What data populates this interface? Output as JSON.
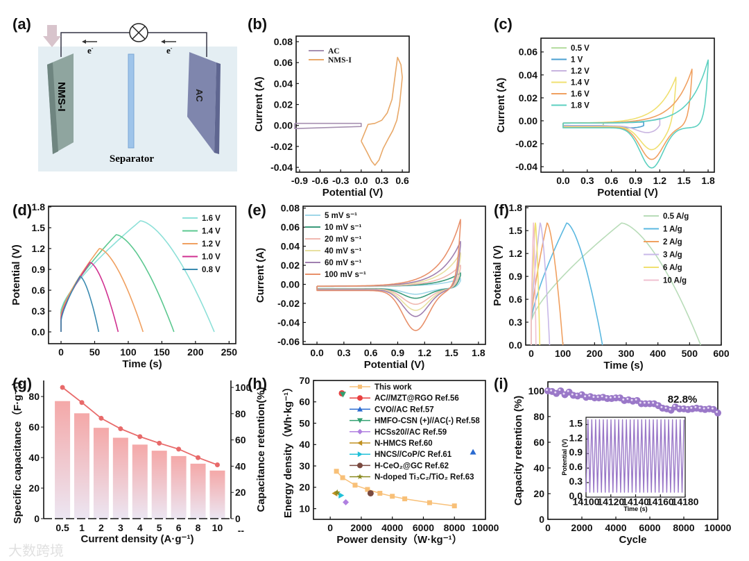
{
  "schematic": {
    "panel_label": "(a)",
    "left_electrode": "NMS-I",
    "right_electrode": "AC",
    "separator": "Separator",
    "electron_label": "e",
    "electron_sup": "-",
    "colors": {
      "electrolyte": "#e4eef3",
      "left": "#8fa59f",
      "right": "#7f86ad",
      "separator": "#9ec4ea"
    }
  },
  "watermark": "大数跨境",
  "chart_data": [
    {
      "id": "b",
      "panel_label": "(b)",
      "type": "line",
      "xlabel": "Potential (V)",
      "ylabel": "Current (A)",
      "xticks": [
        "-0.9",
        "-0.6",
        "-0.3",
        "0.0",
        "0.3",
        "0.6"
      ],
      "yticks": [
        "-0.04",
        "-0.02",
        "0.00",
        "0.02",
        "0.04",
        "0.06",
        "0.08"
      ],
      "xlim": [
        -0.95,
        0.7
      ],
      "ylim": [
        -0.0446,
        0.0853
      ],
      "legend_serif": true,
      "series": [
        {
          "name": "AC",
          "color": "#a58fb0",
          "points": [
            [
              -0.97,
              0.002
            ],
            [
              0,
              0.002
            ],
            [
              0,
              -0.001
            ],
            [
              -0.97,
              -0.003
            ],
            [
              -0.97,
              0.002
            ]
          ]
        },
        {
          "name": "NMS-I",
          "color": "#e8a868",
          "points": [
            [
              0,
              -0.015
            ],
            [
              0.08,
              -0.025
            ],
            [
              0.15,
              -0.034
            ],
            [
              0.2,
              -0.038
            ],
            [
              0.26,
              -0.033
            ],
            [
              0.32,
              -0.022
            ],
            [
              0.4,
              -0.012
            ],
            [
              0.46,
              -0.005
            ],
            [
              0.52,
              0.005
            ],
            [
              0.56,
              0.02
            ],
            [
              0.6,
              0.046
            ],
            [
              0.58,
              0.058
            ],
            [
              0.53,
              0.065
            ],
            [
              0.5,
              0.05
            ],
            [
              0.45,
              0.025
            ],
            [
              0.38,
              0.012
            ],
            [
              0.3,
              0.005
            ],
            [
              0.2,
              0.002
            ],
            [
              0.1,
              0.001
            ],
            [
              0,
              -0.015
            ]
          ]
        }
      ]
    },
    {
      "id": "c",
      "panel_label": "(c)",
      "type": "line",
      "xlabel": "Potential (V)",
      "ylabel": "Current (A)",
      "xticks": [
        "0.0",
        "0.3",
        "0.6",
        "0.9",
        "1.2",
        "1.5",
        "1.8"
      ],
      "yticks": [
        "-0.04",
        "-0.02",
        "0.00",
        "0.02",
        "0.04",
        "0.06"
      ],
      "xlim": [
        -0.275,
        1.877
      ],
      "ylim": [
        -0.0448,
        0.072
      ],
      "series": [
        {
          "name": "0.5 V",
          "color": "#b5dca0",
          "upper_voltage": 0.5,
          "anodic_peak": 0.0005,
          "cathodic_peak": 0.0005
        },
        {
          "name": "1 V",
          "color": "#4a9fd0",
          "upper_voltage": 1.0,
          "anodic_peak": 0.001,
          "cathodic_peak": 0.002
        },
        {
          "name": "1.2 V",
          "color": "#c8b4e0",
          "upper_voltage": 1.2,
          "anodic_peak": 0.004,
          "cathodic_peak": 0.006
        },
        {
          "name": "1.4 V",
          "color": "#f0e070",
          "upper_voltage": 1.4,
          "anodic_peak": 0.04,
          "cathodic_peak": 0.02
        },
        {
          "name": "1.6 V",
          "color": "#f0a060",
          "upper_voltage": 1.6,
          "anodic_peak": 0.047,
          "cathodic_peak": 0.028
        },
        {
          "name": "1.8 V",
          "color": "#5cd0c0",
          "upper_voltage": 1.8,
          "anodic_peak": 0.055,
          "cathodic_peak": 0.035
        }
      ]
    },
    {
      "id": "d",
      "panel_label": "(d)",
      "type": "line",
      "xlabel": "Time (s)",
      "ylabel": "Potential (V)",
      "xticks": [
        "0",
        "50",
        "100",
        "150",
        "200",
        "250"
      ],
      "yticks": [
        "0.0",
        "0.3",
        "0.6",
        "0.9",
        "1.2",
        "1.5",
        "1.8"
      ],
      "xlim": [
        -18.6,
        260
      ],
      "ylim": [
        -0.17,
        1.81
      ],
      "series": [
        {
          "name": "1.6 V",
          "color": "#8de0d8",
          "upper_voltage": 1.6,
          "charge_end_s": 118,
          "discharge_end_s": 228
        },
        {
          "name": "1.4 V",
          "color": "#5cc890",
          "upper_voltage": 1.4,
          "charge_end_s": 82,
          "discharge_end_s": 168
        },
        {
          "name": "1.2 V",
          "color": "#f0a060",
          "upper_voltage": 1.2,
          "charge_end_s": 57,
          "discharge_end_s": 122
        },
        {
          "name": "1.0 V",
          "color": "#d03090",
          "upper_voltage": 1.0,
          "charge_end_s": 43,
          "discharge_end_s": 85
        },
        {
          "name": "0.8 V",
          "color": "#3a8ab0",
          "upper_voltage": 0.8,
          "charge_end_s": 28,
          "discharge_end_s": 56
        }
      ]
    },
    {
      "id": "e",
      "panel_label": "(e)",
      "type": "line",
      "xlabel": "Potential (V)",
      "ylabel": "Current (A)",
      "xticks": [
        "0.0",
        "0.3",
        "0.6",
        "0.9",
        "1.2",
        "1.5",
        "1.8"
      ],
      "yticks": [
        "-0.06",
        "-0.04",
        "-0.02",
        "0.00",
        "0.02",
        "0.04",
        "0.06",
        "0.08"
      ],
      "xlim": [
        -0.155,
        1.878
      ],
      "ylim": [
        -0.063,
        0.082
      ],
      "series": [
        {
          "name": "5 mV s⁻¹",
          "color": "#9fd6e8",
          "upper_voltage": 1.6,
          "anodic_peak": 0.008,
          "cathodic_peak": 0.006
        },
        {
          "name": "10 mV s⁻¹",
          "color": "#3a9a7a",
          "upper_voltage": 1.6,
          "anodic_peak": 0.014,
          "cathodic_peak": 0.01
        },
        {
          "name": "20 mV s⁻¹",
          "color": "#f0b8b0",
          "upper_voltage": 1.6,
          "anodic_peak": 0.022,
          "cathodic_peak": 0.016
        },
        {
          "name": "40 mV s⁻¹",
          "color": "#e8e0a0",
          "upper_voltage": 1.6,
          "anodic_peak": 0.035,
          "cathodic_peak": 0.022
        },
        {
          "name": "60 mV s⁻¹",
          "color": "#a080b0",
          "upper_voltage": 1.6,
          "anodic_peak": 0.047,
          "cathodic_peak": 0.028
        },
        {
          "name": "100 mV s⁻¹",
          "color": "#e8906a",
          "upper_voltage": 1.6,
          "anodic_peak": 0.07,
          "cathodic_peak": 0.042
        }
      ]
    },
    {
      "id": "f",
      "panel_label": "(f)",
      "type": "line",
      "xlabel": "Time (s)",
      "ylabel": "Potential (V)",
      "xticks": [
        "0",
        "100",
        "200",
        "300",
        "400",
        "500",
        "600"
      ],
      "yticks": [
        "0.0",
        "0.3",
        "0.6",
        "0.9",
        "1.2",
        "1.5",
        "1.8"
      ],
      "xlim": [
        -17.5,
        600
      ],
      "ylim": [
        0,
        1.82
      ],
      "series": [
        {
          "name": "0.5 A/g",
          "color": "#b8dcb8",
          "upper_voltage": 1.6,
          "charge_end_s": 285,
          "discharge_end_s": 535
        },
        {
          "name": "1 A/g",
          "color": "#5bb8e0",
          "upper_voltage": 1.6,
          "charge_end_s": 112,
          "discharge_end_s": 225
        },
        {
          "name": "2 A/g",
          "color": "#f0a060",
          "upper_voltage": 1.6,
          "charge_end_s": 50,
          "discharge_end_s": 100
        },
        {
          "name": "3 A/g",
          "color": "#c8b8e8",
          "upper_voltage": 1.6,
          "charge_end_s": 28,
          "discharge_end_s": 58
        },
        {
          "name": "6 A/g",
          "color": "#f0e070",
          "upper_voltage": 1.6,
          "charge_end_s": 13,
          "discharge_end_s": 27
        },
        {
          "name": "10 A/g",
          "color": "#f0c0d0",
          "upper_voltage": 1.6,
          "charge_end_s": 7,
          "discharge_end_s": 15
        }
      ]
    },
    {
      "id": "g",
      "panel_label": "(g)",
      "type": "bar",
      "xlabel": "Current density (A·g⁻¹)",
      "ylabel": "Specific capacitance（F·g⁻¹）",
      "y2label": "Capacitance retention(%)",
      "categories": [
        "0.5",
        "1",
        "2",
        "3",
        "4",
        "5",
        "6",
        "8",
        "10",
        "--"
      ],
      "yticks": [
        "0",
        "20",
        "40",
        "60",
        "80"
      ],
      "y2ticks": [
        "0",
        "20",
        "40",
        "60",
        "80",
        "100"
      ],
      "ylim": [
        0,
        90.5
      ],
      "y2lim": [
        0,
        105.3
      ],
      "capacitance": [
        77,
        69,
        59.5,
        53,
        48.5,
        44.5,
        41,
        36,
        31.5
      ],
      "retention": [
        100,
        88.5,
        76.5,
        68.5,
        62.5,
        57.5,
        53,
        46.5,
        41
      ],
      "bar_color_top": "#f4a8a8",
      "bar_color_bottom": "#ece6f2",
      "line_color": "#e86a6a"
    },
    {
      "id": "h",
      "panel_label": "(h)",
      "type": "scatter",
      "xlabel": "Power density（W·kg⁻¹）",
      "ylabel": "Energy density（Wh·kg⁻¹）",
      "xticks": [
        "0",
        "2000",
        "4000",
        "6000",
        "8000",
        "10000"
      ],
      "yticks": [
        "10",
        "20",
        "30",
        "40",
        "50",
        "60",
        "70"
      ],
      "xlim": [
        -1080,
        10000
      ],
      "ylim": [
        5,
        70
      ],
      "series": [
        {
          "name": "This work",
          "color": "#f8c078",
          "marker": "square",
          "line": true,
          "points": [
            [
              400,
              27.5
            ],
            [
              800,
              24.5
            ],
            [
              1600,
              21
            ],
            [
              2400,
              19
            ],
            [
              3200,
              17.2
            ],
            [
              4000,
              15.8
            ],
            [
              4800,
              14.6
            ],
            [
              6400,
              12.8
            ],
            [
              8000,
              11.3
            ]
          ]
        },
        {
          "name": "AC//MZT@RGO Ref.56",
          "color": "#e84040",
          "marker": "circle",
          "points": [
            [
              750,
              64
            ]
          ]
        },
        {
          "name": "CVO//AC Ref.57",
          "color": "#2a6ad0",
          "marker": "triangle-up",
          "points": [
            [
              9200,
              36.5
            ]
          ]
        },
        {
          "name": "HMFO-CSN (+)//AC(-) Ref.58",
          "color": "#30a070",
          "marker": "triangle-down",
          "points": [
            [
              820,
              63.5
            ]
          ]
        },
        {
          "name": "HCSs20//AC Ref.59",
          "color": "#b080e0",
          "marker": "diamond",
          "points": [
            [
              1000,
              13
            ]
          ]
        },
        {
          "name": "N-HMCS Ref.60",
          "color": "#c09020",
          "marker": "triangle-left",
          "points": [
            [
              300,
              17.2
            ]
          ]
        },
        {
          "name": "HNCS//CoP/C Ref.61",
          "color": "#20c0d8",
          "marker": "triangle-right",
          "points": [
            [
              700,
              16.2
            ]
          ]
        },
        {
          "name": "H-CeO₂@GC Ref.62",
          "color": "#7a4a40",
          "marker": "circle",
          "points": [
            [
              2600,
              17.2
            ]
          ]
        },
        {
          "name": "N-doped Ti₃C₂/TiO₂ Ref.63",
          "color": "#8a8a20",
          "marker": "star",
          "points": [
            [
              450,
              17.5
            ]
          ]
        }
      ]
    },
    {
      "id": "i",
      "panel_label": "(i)",
      "type": "scatter",
      "xlabel": "Cycle",
      "ylabel": "Capacity retention (%)",
      "xticks": [
        "0",
        "2000",
        "4000",
        "6000",
        "8000",
        "10000"
      ],
      "yticks": [
        "0",
        "20",
        "40",
        "60",
        "80",
        "100"
      ],
      "xlim": [
        0,
        10000
      ],
      "ylim": [
        0,
        107
      ],
      "annotation": "82.8%",
      "color": "#9a78c8",
      "cycles_step": 250,
      "retention": [
        100,
        99.5,
        98,
        100,
        97,
        99,
        96.5,
        96,
        97,
        95,
        95.5,
        94.5,
        94.5,
        95,
        94,
        94,
        94.5,
        94.5,
        92.5,
        93,
        92,
        92.5,
        90,
        90,
        90,
        90,
        88.5,
        86.5,
        86,
        85,
        87.5,
        86,
        86,
        85.5,
        86,
        86.5,
        86,
        85.5,
        86,
        85.5,
        82.8
      ],
      "inset": {
        "xlabel": "Time (s)",
        "ylabel": "Potential (V)",
        "xticks": [
          "14100",
          "14120",
          "14140",
          "14160",
          "14180"
        ],
        "yticks": [
          "0.0",
          "0.3",
          "0.6",
          "0.9",
          "1.2",
          "1.5"
        ],
        "xlim": [
          14100,
          14180
        ],
        "ylim": [
          0,
          1.65
        ],
        "cycle_period_s": 3.1,
        "v_min": 0.1,
        "v_max": 1.6
      }
    }
  ]
}
